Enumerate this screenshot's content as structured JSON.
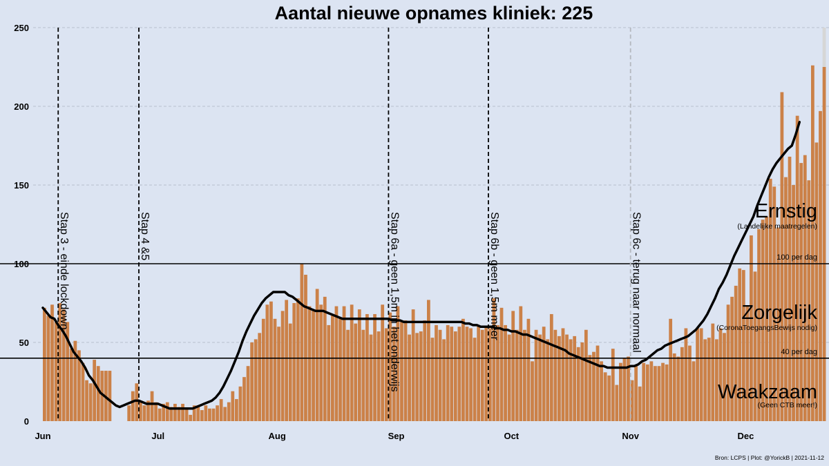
{
  "chart_data": {
    "type": "bar",
    "title_prefix": "Aantal nieuwe opnames kliniek:",
    "title_value": "225",
    "x_start": "2021-06-01",
    "xlim": [
      "2021-06-01",
      "2021-12-31"
    ],
    "ylim": [
      0,
      250
    ],
    "y_ticks": [
      0,
      50,
      100,
      150,
      200,
      250
    ],
    "x_ticks": [
      {
        "date": "2021-06-01",
        "label": "Jun"
      },
      {
        "date": "2021-07-01",
        "label": "Jul"
      },
      {
        "date": "2021-08-01",
        "label": "Aug"
      },
      {
        "date": "2021-09-01",
        "label": "Sep"
      },
      {
        "date": "2021-10-01",
        "label": "Oct"
      },
      {
        "date": "2021-11-01",
        "label": "Nov"
      },
      {
        "date": "2021-12-01",
        "label": "Dec"
      }
    ],
    "colors": {
      "bar": "#cb8148",
      "line": "#000000",
      "incomplete": "#d6d6d6",
      "background": "#dce4f2"
    },
    "values": [
      72,
      67,
      74,
      63,
      75,
      71,
      63,
      46,
      51,
      45,
      37,
      26,
      24,
      39,
      35,
      32,
      32,
      32,
      null,
      null,
      null,
      null,
      10,
      19,
      24,
      12,
      10,
      13,
      19,
      12,
      8,
      11,
      12,
      9,
      11,
      9,
      11,
      8,
      4,
      10,
      10,
      7,
      10,
      8,
      8,
      10,
      14,
      9,
      12,
      19,
      14,
      22,
      28,
      35,
      50,
      52,
      56,
      65,
      74,
      76,
      65,
      60,
      70,
      77,
      62,
      75,
      78,
      100,
      93,
      73,
      70,
      84,
      74,
      79,
      61,
      67,
      73,
      66,
      73,
      58,
      74,
      62,
      71,
      58,
      68,
      55,
      68,
      57,
      74,
      59,
      69,
      60,
      73,
      63,
      64,
      55,
      71,
      56,
      57,
      64,
      77,
      53,
      61,
      58,
      52,
      61,
      60,
      57,
      60,
      65,
      60,
      59,
      53,
      61,
      58,
      60,
      59,
      78,
      61,
      72,
      61,
      55,
      70,
      58,
      73,
      58,
      65,
      38,
      58,
      55,
      60,
      52,
      68,
      58,
      54,
      59,
      55,
      52,
      54,
      47,
      50,
      58,
      42,
      44,
      48,
      38,
      31,
      29,
      46,
      23,
      37,
      40,
      41,
      26,
      35,
      22,
      37,
      36,
      38,
      35,
      35,
      37,
      36,
      65,
      43,
      41,
      47,
      59,
      48,
      38,
      59,
      59,
      52,
      53,
      62,
      52,
      59,
      56,
      74,
      79,
      86,
      97,
      96,
      73,
      118,
      95,
      122,
      128,
      130,
      154,
      149,
      123,
      209,
      155,
      168,
      150,
      194,
      164,
      169,
      153,
      226,
      177,
      197,
      225
    ],
    "incomplete_last": 250,
    "rolling_avg": [
      72,
      69,
      66,
      65,
      61,
      58,
      54,
      49,
      44,
      41,
      38,
      34,
      29,
      26,
      22,
      18,
      16,
      14,
      12,
      10,
      9,
      10,
      11,
      12,
      13,
      13,
      12,
      11,
      11,
      11,
      11,
      10,
      9,
      8,
      8,
      8,
      8,
      8,
      8,
      8,
      9,
      10,
      11,
      12,
      13,
      15,
      18,
      22,
      27,
      32,
      38,
      44,
      51,
      57,
      62,
      67,
      71,
      75,
      78,
      80,
      82,
      82,
      82,
      82,
      80,
      79,
      77,
      75,
      73,
      72,
      71,
      70,
      70,
      70,
      69,
      68,
      67,
      66,
      65,
      65,
      65,
      65,
      65,
      65,
      65,
      65,
      65,
      65,
      65,
      65,
      65,
      64,
      64,
      64,
      63,
      63,
      63,
      63,
      63,
      63,
      63,
      63,
      63,
      63,
      63,
      63,
      63,
      63,
      63,
      63,
      62,
      62,
      61,
      61,
      60,
      60,
      60,
      60,
      59,
      59,
      58,
      58,
      57,
      57,
      56,
      55,
      55,
      54,
      53,
      52,
      51,
      50,
      49,
      48,
      47,
      46,
      45,
      43,
      42,
      41,
      40,
      39,
      38,
      37,
      36,
      35,
      35,
      34,
      34,
      34,
      34,
      34,
      34,
      35,
      35,
      36,
      38,
      39,
      41,
      43,
      45,
      46,
      48,
      49,
      50,
      51,
      52,
      53,
      54,
      56,
      58,
      61,
      64,
      68,
      73,
      78,
      84,
      88,
      93,
      99,
      105,
      110,
      115,
      120,
      125,
      130,
      137,
      143,
      149,
      155,
      160,
      164,
      167,
      170,
      173,
      175,
      182,
      190
    ],
    "stages": [
      {
        "date": "2021-06-05",
        "label": "Stap 3 - einde lockdown",
        "faded": false
      },
      {
        "date": "2021-06-26",
        "label": "Stap 4 &5",
        "faded": false
      },
      {
        "date": "2021-08-30",
        "label": "Stap 6a - geen 1,5m in het onderwijs",
        "faded": false
      },
      {
        "date": "2021-09-25",
        "label": "Stap 6b - geen 1,5m meer",
        "faded": false
      },
      {
        "date": "2021-11-01",
        "label": "Stap 6c - terug naar normaal",
        "faded": true
      }
    ],
    "ref_lines": [
      {
        "value": 100,
        "label": "100 per dag"
      },
      {
        "value": 40,
        "label": "40 per dag"
      }
    ],
    "zones": [
      {
        "label": "Ernstig",
        "sub": "(Landelijke maatregelen)"
      },
      {
        "label": "Zorgelijk",
        "sub": "(CoronaToegangsBewijs nodig)"
      },
      {
        "label": "Waakzaam",
        "sub": "(Geen CTB meer!)"
      }
    ],
    "source": "Bron: LCPS | Plot: @YorickB |  2021-11-12"
  }
}
